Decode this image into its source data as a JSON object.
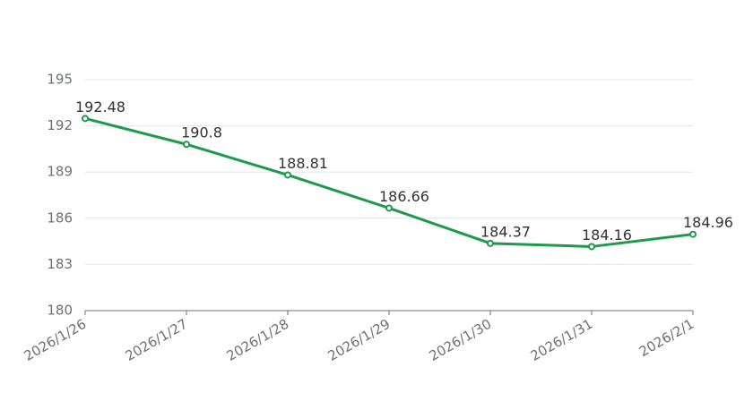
{
  "chart_data": {
    "type": "line",
    "categories": [
      "2026/1/26",
      "2026/1/27",
      "2026/1/28",
      "2026/1/29",
      "2026/1/30",
      "2026/1/31",
      "2026/2/1"
    ],
    "series": [
      {
        "color": "#1e9a4a",
        "values": [
          192.48,
          190.8,
          188.81,
          186.66,
          184.37,
          184.16,
          184.96
        ]
      }
    ],
    "ylim": [
      180,
      195
    ],
    "yticks": [
      180,
      183,
      186,
      189,
      192,
      195
    ],
    "grid": true
  }
}
